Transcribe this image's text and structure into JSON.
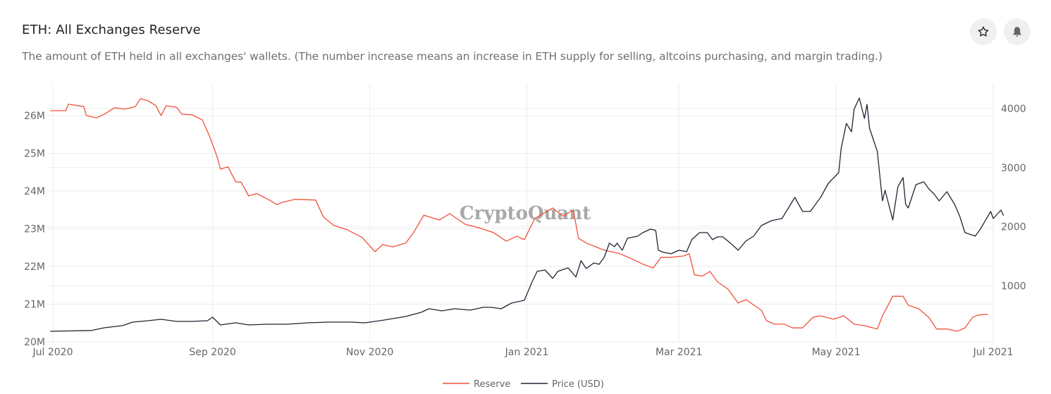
{
  "header": {
    "title": "ETH: All Exchanges Reserve",
    "description": "The amount of ETH held in all exchanges' wallets. (The number increase means an increase in ETH supply for selling, altcoins purchasing, and margin trading.)",
    "actions": [
      {
        "icon": "star-icon",
        "label": "favorite"
      },
      {
        "icon": "bell-icon",
        "label": "alert"
      }
    ]
  },
  "watermark": "CryptoQuant",
  "chart_data": {
    "type": "line",
    "title": "",
    "xlabel": "",
    "ylabel": "",
    "x_ticks": [
      "Jul 2020",
      "Sep 2020",
      "Nov 2020",
      "Jan 2021",
      "Mar 2021",
      "May 2021",
      "Jul 2021"
    ],
    "y_left_ticks": [
      "20M",
      "21M",
      "22M",
      "23M",
      "24M",
      "25M",
      "26M"
    ],
    "y_right_ticks": [
      "1000",
      "2000",
      "3000",
      "4000"
    ],
    "y_left_range_millions": [
      20,
      26.6
    ],
    "y_right_range_usd": [
      0,
      4400
    ],
    "grid": true,
    "legend_position": "bottom",
    "series": [
      {
        "name": "Reserve",
        "axis": "left",
        "unit": "M ETH",
        "color": "#f0503a",
        "points": [
          [
            "2020-06-30",
            26.13
          ],
          [
            "2020-07-06",
            26.13
          ],
          [
            "2020-07-07",
            26.3
          ],
          [
            "2020-07-13",
            26.24
          ],
          [
            "2020-07-14",
            26.0
          ],
          [
            "2020-07-18",
            25.94
          ],
          [
            "2020-07-21",
            26.04
          ],
          [
            "2020-07-25",
            26.21
          ],
          [
            "2020-07-29",
            26.17
          ],
          [
            "2020-08-02",
            26.24
          ],
          [
            "2020-08-04",
            26.45
          ],
          [
            "2020-08-07",
            26.39
          ],
          [
            "2020-08-10",
            26.26
          ],
          [
            "2020-08-12",
            26.0
          ],
          [
            "2020-08-14",
            26.26
          ],
          [
            "2020-08-18",
            26.22
          ],
          [
            "2020-08-20",
            26.04
          ],
          [
            "2020-08-24",
            26.02
          ],
          [
            "2020-08-28",
            25.89
          ],
          [
            "2020-08-31",
            25.42
          ],
          [
            "2020-09-03",
            24.86
          ],
          [
            "2020-09-04",
            24.58
          ],
          [
            "2020-09-07",
            24.64
          ],
          [
            "2020-09-10",
            24.24
          ],
          [
            "2020-09-12",
            24.24
          ],
          [
            "2020-09-15",
            23.87
          ],
          [
            "2020-09-18",
            23.93
          ],
          [
            "2020-09-20",
            23.87
          ],
          [
            "2020-09-23",
            23.76
          ],
          [
            "2020-09-26",
            23.64
          ],
          [
            "2020-09-28",
            23.7
          ],
          [
            "2020-10-03",
            23.78
          ],
          [
            "2020-10-11",
            23.76
          ],
          [
            "2020-10-14",
            23.31
          ],
          [
            "2020-10-18",
            23.09
          ],
          [
            "2020-10-23",
            22.98
          ],
          [
            "2020-10-29",
            22.77
          ],
          [
            "2020-11-03",
            22.39
          ],
          [
            "2020-11-06",
            22.58
          ],
          [
            "2020-11-10",
            22.52
          ],
          [
            "2020-11-15",
            22.62
          ],
          [
            "2020-11-18",
            22.9
          ],
          [
            "2020-11-22",
            23.36
          ],
          [
            "2020-11-28",
            23.23
          ],
          [
            "2020-12-02",
            23.4
          ],
          [
            "2020-12-08",
            23.12
          ],
          [
            "2020-12-13",
            23.03
          ],
          [
            "2020-12-19",
            22.9
          ],
          [
            "2020-12-24",
            22.67
          ],
          [
            "2020-12-28",
            22.8
          ],
          [
            "2020-12-31",
            22.71
          ],
          [
            "2021-01-04",
            23.27
          ],
          [
            "2021-01-11",
            23.55
          ],
          [
            "2021-01-15",
            23.33
          ],
          [
            "2021-01-19",
            23.5
          ],
          [
            "2021-01-21",
            22.75
          ],
          [
            "2021-01-24",
            22.62
          ],
          [
            "2021-01-31",
            22.43
          ],
          [
            "2021-02-06",
            22.34
          ],
          [
            "2021-02-11",
            22.19
          ],
          [
            "2021-02-15",
            22.06
          ],
          [
            "2021-02-19",
            21.96
          ],
          [
            "2021-02-22",
            22.24
          ],
          [
            "2021-02-26",
            22.24
          ],
          [
            "2021-03-03",
            22.28
          ],
          [
            "2021-03-05",
            22.34
          ],
          [
            "2021-03-07",
            21.78
          ],
          [
            "2021-03-10",
            21.74
          ],
          [
            "2021-03-13",
            21.87
          ],
          [
            "2021-03-16",
            21.59
          ],
          [
            "2021-03-20",
            21.4
          ],
          [
            "2021-03-24",
            21.03
          ],
          [
            "2021-03-27",
            21.12
          ],
          [
            "2021-04-02",
            20.84
          ],
          [
            "2021-04-04",
            20.56
          ],
          [
            "2021-04-07",
            20.47
          ],
          [
            "2021-04-11",
            20.47
          ],
          [
            "2021-04-14",
            20.37
          ],
          [
            "2021-04-18",
            20.37
          ],
          [
            "2021-04-22",
            20.65
          ],
          [
            "2021-04-25",
            20.69
          ],
          [
            "2021-04-30",
            20.6
          ],
          [
            "2021-05-04",
            20.69
          ],
          [
            "2021-05-08",
            20.47
          ],
          [
            "2021-05-12",
            20.43
          ],
          [
            "2021-05-17",
            20.34
          ],
          [
            "2021-05-19",
            20.69
          ],
          [
            "2021-05-23",
            21.21
          ],
          [
            "2021-05-27",
            21.21
          ],
          [
            "2021-05-29",
            20.97
          ],
          [
            "2021-06-02",
            20.88
          ],
          [
            "2021-06-06",
            20.65
          ],
          [
            "2021-06-09",
            20.34
          ],
          [
            "2021-06-13",
            20.34
          ],
          [
            "2021-06-17",
            20.28
          ],
          [
            "2021-06-20",
            20.37
          ],
          [
            "2021-06-23",
            20.65
          ],
          [
            "2021-06-25",
            20.71
          ],
          [
            "2021-06-29",
            20.73
          ]
        ]
      },
      {
        "name": "Price (USD)",
        "axis": "right",
        "unit": "USD",
        "color": "#1e2633",
        "points": [
          [
            "2020-06-30",
            227
          ],
          [
            "2020-07-16",
            240
          ],
          [
            "2020-07-21",
            287
          ],
          [
            "2020-07-28",
            322
          ],
          [
            "2020-08-01",
            382
          ],
          [
            "2020-08-07",
            406
          ],
          [
            "2020-08-12",
            430
          ],
          [
            "2020-08-18",
            394
          ],
          [
            "2020-08-24",
            394
          ],
          [
            "2020-08-30",
            406
          ],
          [
            "2020-09-01",
            466
          ],
          [
            "2020-09-04",
            334
          ],
          [
            "2020-09-10",
            370
          ],
          [
            "2020-09-15",
            334
          ],
          [
            "2020-09-22",
            346
          ],
          [
            "2020-09-30",
            346
          ],
          [
            "2020-10-08",
            370
          ],
          [
            "2020-10-16",
            382
          ],
          [
            "2020-10-25",
            382
          ],
          [
            "2020-10-30",
            370
          ],
          [
            "2020-11-05",
            406
          ],
          [
            "2020-11-10",
            442
          ],
          [
            "2020-11-15",
            478
          ],
          [
            "2020-11-21",
            549
          ],
          [
            "2020-11-24",
            609
          ],
          [
            "2020-11-29",
            573
          ],
          [
            "2020-12-04",
            609
          ],
          [
            "2020-12-10",
            585
          ],
          [
            "2020-12-15",
            633
          ],
          [
            "2020-12-18",
            633
          ],
          [
            "2020-12-22",
            609
          ],
          [
            "2020-12-26",
            705
          ],
          [
            "2020-12-31",
            752
          ],
          [
            "2021-01-03",
            1063
          ],
          [
            "2021-01-05",
            1242
          ],
          [
            "2021-01-08",
            1266
          ],
          [
            "2021-01-11",
            1122
          ],
          [
            "2021-01-13",
            1242
          ],
          [
            "2021-01-17",
            1302
          ],
          [
            "2021-01-20",
            1146
          ],
          [
            "2021-01-22",
            1421
          ],
          [
            "2021-01-24",
            1290
          ],
          [
            "2021-01-27",
            1385
          ],
          [
            "2021-01-29",
            1361
          ],
          [
            "2021-01-31",
            1481
          ],
          [
            "2021-02-02",
            1719
          ],
          [
            "2021-02-04",
            1660
          ],
          [
            "2021-02-05",
            1719
          ],
          [
            "2021-02-07",
            1600
          ],
          [
            "2021-02-09",
            1803
          ],
          [
            "2021-02-13",
            1839
          ],
          [
            "2021-02-15",
            1899
          ],
          [
            "2021-02-18",
            1958
          ],
          [
            "2021-02-20",
            1934
          ],
          [
            "2021-02-21",
            1600
          ],
          [
            "2021-02-23",
            1564
          ],
          [
            "2021-02-26",
            1540
          ],
          [
            "2021-03-01",
            1600
          ],
          [
            "2021-03-04",
            1576
          ],
          [
            "2021-03-06",
            1779
          ],
          [
            "2021-03-09",
            1899
          ],
          [
            "2021-03-12",
            1899
          ],
          [
            "2021-03-14",
            1779
          ],
          [
            "2021-03-16",
            1827
          ],
          [
            "2021-03-18",
            1827
          ],
          [
            "2021-03-21",
            1719
          ],
          [
            "2021-03-24",
            1600
          ],
          [
            "2021-03-27",
            1755
          ],
          [
            "2021-03-30",
            1839
          ],
          [
            "2021-04-02",
            2018
          ],
          [
            "2021-04-06",
            2101
          ],
          [
            "2021-04-10",
            2137
          ],
          [
            "2021-04-15",
            2496
          ],
          [
            "2021-04-18",
            2257
          ],
          [
            "2021-04-21",
            2257
          ],
          [
            "2021-04-25",
            2496
          ],
          [
            "2021-04-28",
            2734
          ],
          [
            "2021-05-02",
            2913
          ],
          [
            "2021-05-03",
            3331
          ],
          [
            "2021-05-05",
            3749
          ],
          [
            "2021-05-07",
            3606
          ],
          [
            "2021-05-08",
            3988
          ],
          [
            "2021-05-10",
            4179
          ],
          [
            "2021-05-12",
            3833
          ],
          [
            "2021-05-13",
            4072
          ],
          [
            "2021-05-14",
            3666
          ],
          [
            "2021-05-17",
            3272
          ],
          [
            "2021-05-19",
            2436
          ],
          [
            "2021-05-20",
            2615
          ],
          [
            "2021-05-23",
            2113
          ],
          [
            "2021-05-25",
            2675
          ],
          [
            "2021-05-27",
            2830
          ],
          [
            "2021-05-28",
            2376
          ],
          [
            "2021-05-29",
            2316
          ],
          [
            "2021-06-01",
            2710
          ],
          [
            "2021-06-04",
            2758
          ],
          [
            "2021-06-06",
            2639
          ],
          [
            "2021-06-08",
            2555
          ],
          [
            "2021-06-10",
            2436
          ],
          [
            "2021-06-13",
            2591
          ],
          [
            "2021-06-16",
            2376
          ],
          [
            "2021-06-18",
            2173
          ],
          [
            "2021-06-20",
            1899
          ],
          [
            "2021-06-24",
            1839
          ],
          [
            "2021-06-26",
            1958
          ],
          [
            "2021-06-30",
            2257
          ],
          [
            "2021-07-01",
            2137
          ],
          [
            "2021-07-04",
            2281
          ],
          [
            "2021-07-05",
            2185
          ]
        ]
      }
    ]
  }
}
